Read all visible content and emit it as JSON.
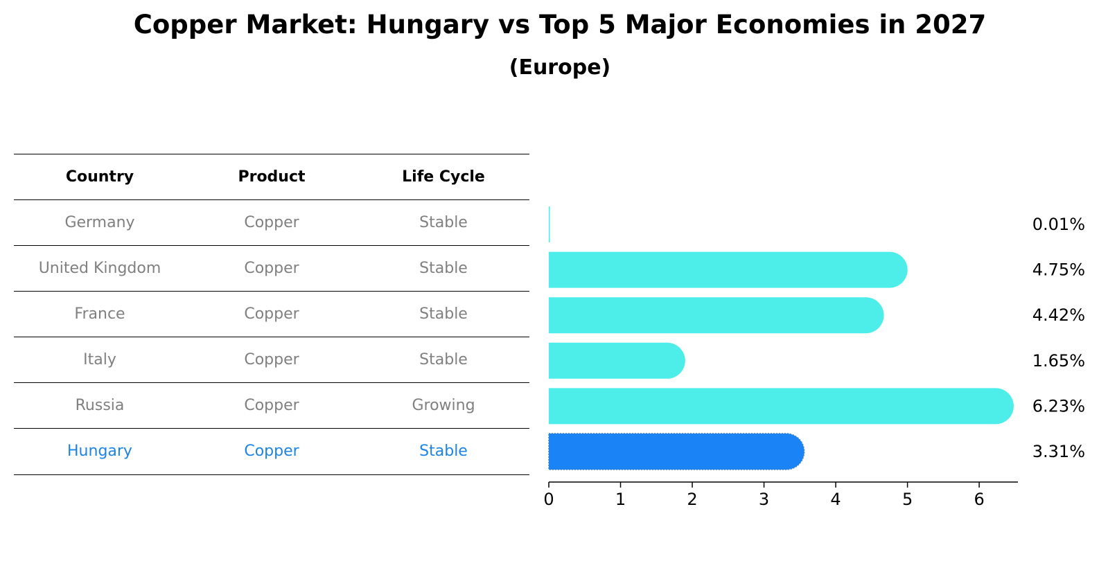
{
  "title": "Copper Market: Hungary vs Top 5 Major Economies in 2027",
  "subtitle": "(Europe)",
  "table": {
    "headers": [
      "Country",
      "Product",
      "Life Cycle"
    ],
    "rows": [
      {
        "country": "Germany",
        "product": "Copper",
        "life_cycle": "Stable"
      },
      {
        "country": "United Kingdom",
        "product": "Copper",
        "life_cycle": "Stable"
      },
      {
        "country": "France",
        "product": "Copper",
        "life_cycle": "Stable"
      },
      {
        "country": "Italy",
        "product": "Copper",
        "life_cycle": "Stable"
      },
      {
        "country": "Russia",
        "product": "Copper",
        "life_cycle": "Growing"
      },
      {
        "country": "Hungary",
        "product": "Copper",
        "life_cycle": "Stable"
      }
    ],
    "highlight_row": "Hungary"
  },
  "chart_data": {
    "type": "bar",
    "orientation": "horizontal",
    "categories": [
      "Germany",
      "United Kingdom",
      "France",
      "Italy",
      "Russia",
      "Hungary"
    ],
    "values": [
      0.01,
      4.75,
      4.42,
      1.65,
      6.23,
      3.31
    ],
    "value_labels": [
      "0.01%",
      "4.75%",
      "4.42%",
      "1.65%",
      "6.23%",
      "3.31%"
    ],
    "xlim": [
      0,
      6.54
    ],
    "xticks": [
      0,
      1,
      2,
      3,
      4,
      5,
      6
    ],
    "xlabel": "",
    "ylabel": "",
    "grid": false,
    "colors": {
      "default": "#4deeea",
      "highlight": "#1a84f7"
    },
    "highlight_category": "Hungary"
  },
  "colors": {
    "table_text": "#808080",
    "table_highlight_text": "#1a84e8",
    "rule": "#000000"
  }
}
